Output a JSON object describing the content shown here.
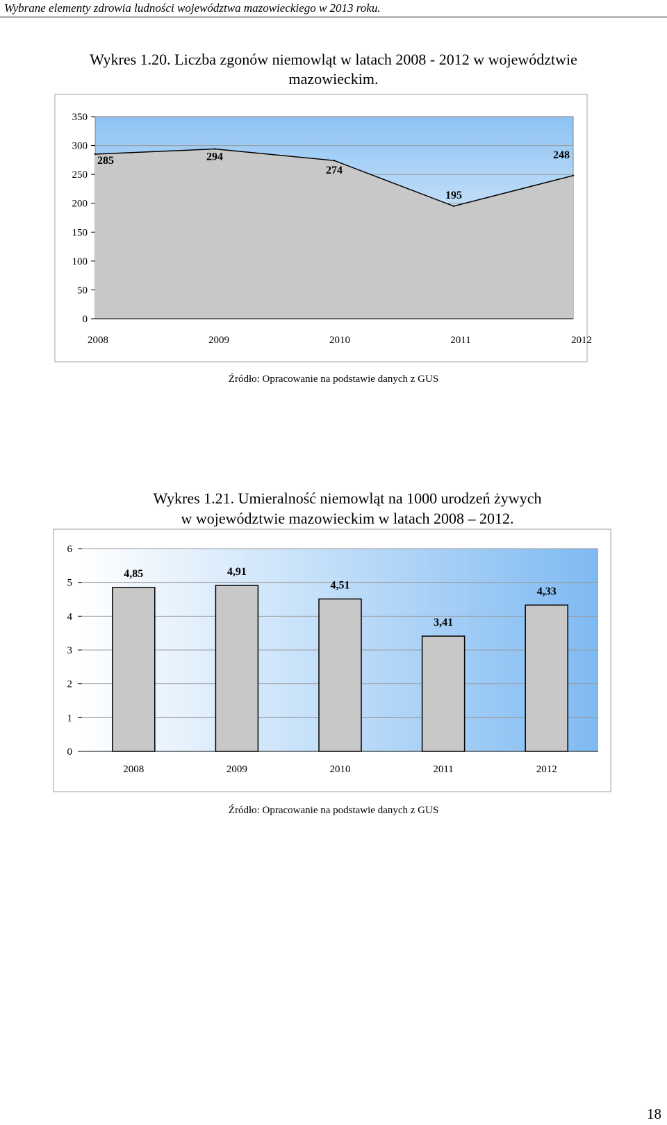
{
  "header": {
    "text": "Wybrane elementy zdrowia ludności województwa mazowieckiego w 2013 roku."
  },
  "charts": [
    {
      "title_lines": [
        "Wykres 1.20. Liczba zgonów niemowląt w latach 2008 - 2012 w województwie",
        "mazowieckim."
      ],
      "source": "Źródło: Opracowanie na podstawie danych z GUS"
    },
    {
      "title_lines": [
        "Wykres 1.21. Umieralność niemowląt na 1000 urodzeń żywych",
        "w województwie mazowieckim w latach 2008 – 2012."
      ],
      "source": "Źródło: Opracowanie na podstawie danych z GUS"
    }
  ],
  "chart_data": [
    {
      "type": "area",
      "title": "Wykres 1.20. Liczba zgonów niemowląt w latach 2008 - 2012 w województwie mazowieckim.",
      "categories": [
        "2008",
        "2009",
        "2010",
        "2011",
        "2012"
      ],
      "values": [
        285,
        294,
        274,
        195,
        248
      ],
      "data_labels": [
        "285",
        "294",
        "274",
        "195",
        "248"
      ],
      "ylim": [
        0,
        350
      ],
      "yticks": [
        "0",
        "50",
        "100",
        "150",
        "200",
        "250",
        "300",
        "350"
      ],
      "grid": true,
      "xlabel": "",
      "ylabel": "",
      "colors": {
        "fill": "#c8c8c8",
        "line": "#000000",
        "bg_top": "#8ec3f3",
        "bg_bottom": "#ffffff"
      }
    },
    {
      "type": "bar",
      "title": "Wykres 1.21. Umieralność niemowląt na 1000 urodzeń żywych w województwie mazowieckim w latach 2008 – 2012.",
      "categories": [
        "2008",
        "2009",
        "2010",
        "2011",
        "2012"
      ],
      "values": [
        4.85,
        4.91,
        4.51,
        3.41,
        4.33
      ],
      "data_labels": [
        "4,85",
        "4,91",
        "4,51",
        "3,41",
        "4,33"
      ],
      "ylim": [
        0,
        6
      ],
      "yticks": [
        "0",
        "1",
        "2",
        "3",
        "4",
        "5",
        "6"
      ],
      "grid": true,
      "xlabel": "",
      "ylabel": "",
      "colors": {
        "bar": "#c8c8c8",
        "bar_edge": "#000000",
        "bg_left": "#ffffff",
        "bg_right": "#7fbaf2"
      }
    }
  ],
  "page": {
    "number": "18"
  }
}
